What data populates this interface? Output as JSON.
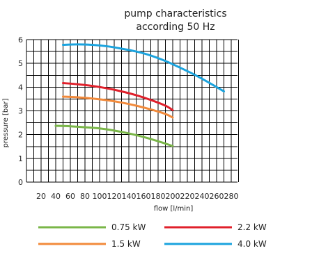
{
  "chart_data": {
    "type": "line",
    "title": [
      "pump characteristics",
      "according 50 Hz"
    ],
    "xlabel": "flow [l/min]",
    "ylabel": "pressure [bar]",
    "xlim": [
      0,
      280
    ],
    "ylim": [
      0,
      6
    ],
    "x_ticks": [
      20,
      40,
      60,
      80,
      100,
      120,
      140,
      160,
      180,
      200,
      220,
      240,
      260,
      280
    ],
    "y_ticks": [
      0,
      1,
      2,
      3,
      4,
      5,
      6
    ],
    "grid": true,
    "legend_position": "bottom",
    "series": [
      {
        "name": "0.75 kW",
        "color": "#7ab648",
        "x": [
          40,
          60,
          80,
          100,
          120,
          140,
          160,
          180,
          200
        ],
        "y": [
          2.37,
          2.35,
          2.31,
          2.26,
          2.17,
          2.05,
          1.9,
          1.72,
          1.52
        ]
      },
      {
        "name": "1.5 kW",
        "color": "#f28a3b",
        "x": [
          50,
          70,
          90,
          110,
          130,
          150,
          170,
          190,
          200
        ],
        "y": [
          3.6,
          3.57,
          3.52,
          3.45,
          3.35,
          3.22,
          3.06,
          2.87,
          2.72
        ]
      },
      {
        "name": "2.2 kW",
        "color": "#e0202b",
        "x": [
          50,
          70,
          90,
          110,
          130,
          150,
          170,
          190,
          200
        ],
        "y": [
          4.17,
          4.12,
          4.05,
          3.95,
          3.82,
          3.66,
          3.46,
          3.22,
          3.03
        ]
      },
      {
        "name": "4.0 kW",
        "color": "#1aa3de",
        "x": [
          50,
          70,
          90,
          110,
          130,
          150,
          170,
          190,
          210,
          230,
          250,
          270
        ],
        "y": [
          5.78,
          5.8,
          5.78,
          5.72,
          5.62,
          5.5,
          5.33,
          5.1,
          4.82,
          4.52,
          4.18,
          3.82
        ]
      }
    ]
  }
}
